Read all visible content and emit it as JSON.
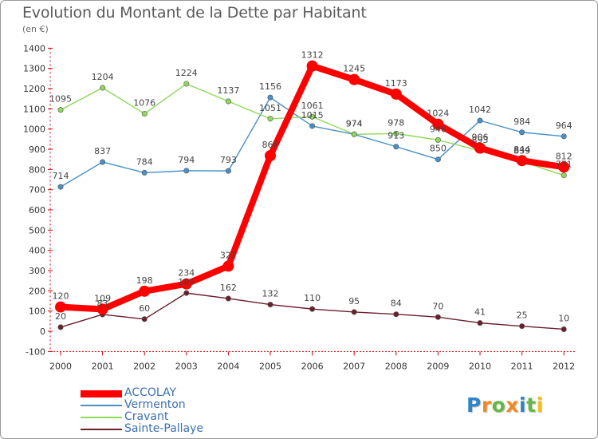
{
  "page": {
    "title": "Evolution du Montant de la Dette par Habitant",
    "subtitle": "(en €)"
  },
  "chart_data": {
    "type": "line",
    "categories": [
      "2000",
      "2001",
      "2002",
      "2003",
      "2004",
      "2005",
      "2006",
      "2007",
      "2008",
      "2009",
      "2010",
      "2011",
      "2012"
    ],
    "ylim": [
      -100,
      1400
    ],
    "yticks": [
      -100,
      0,
      100,
      200,
      300,
      400,
      500,
      600,
      700,
      800,
      900,
      1000,
      1100,
      1200,
      1300,
      1400
    ],
    "grid": false,
    "legend_position": "bottom-left",
    "series": [
      {
        "name": "ACCOLAY",
        "color": "#ff0000",
        "emphasis": true,
        "values": [
          120,
          109,
          198,
          234,
          322,
          868,
          1312,
          1245,
          1173,
          1024,
          906,
          844,
          812
        ]
      },
      {
        "name": "Vermenton",
        "color": "#4a90c8",
        "values": [
          714,
          837,
          784,
          794,
          793,
          1156,
          1015,
          974,
          913,
          850,
          1042,
          984,
          964
        ]
      },
      {
        "name": "Cravant",
        "color": "#8ed85a",
        "values": [
          1095,
          1204,
          1076,
          1224,
          1137,
          1051,
          1061,
          974,
          978,
          946,
          893,
          839,
          771
        ]
      },
      {
        "name": "Sainte-Pallaye",
        "color": "#6b1f2a",
        "values": [
          20,
          83,
          60,
          189,
          162,
          132,
          110,
          95,
          84,
          70,
          41,
          25,
          10
        ]
      }
    ]
  },
  "logo": {
    "letters": [
      "P",
      "r",
      "o",
      "x",
      "i",
      "t",
      "i"
    ],
    "colors": [
      "#2e86c9",
      "#f08a24",
      "#66b845",
      "#f08a24",
      "#2e86c9",
      "#66b845",
      "#f0c020"
    ]
  }
}
